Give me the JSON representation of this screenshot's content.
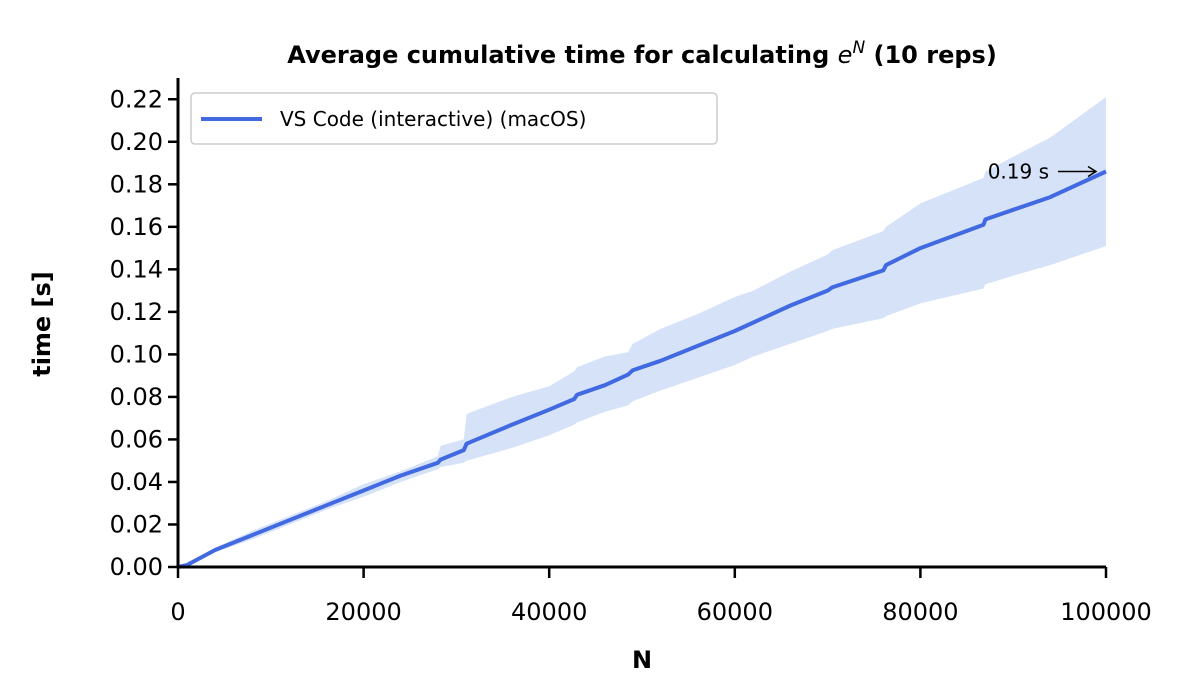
{
  "chart_data": {
    "type": "line",
    "title": "Average cumulative time for calculating e^N (10 reps)",
    "title_parts": {
      "prefix": "Average cumulative time for calculating ",
      "base": "e",
      "exponent": "N",
      "suffix": " (10 reps)"
    },
    "xlabel": "N",
    "ylabel": "time [s]",
    "xlim": [
      0,
      100000
    ],
    "ylim": [
      0,
      0.23
    ],
    "xticks": [
      0,
      20000,
      40000,
      60000,
      80000,
      100000
    ],
    "xtick_labels": [
      "0",
      "20000",
      "40000",
      "60000",
      "80000",
      "100000"
    ],
    "yticks": [
      0,
      0.02,
      0.04,
      0.06,
      0.08,
      0.1,
      0.12,
      0.14,
      0.16,
      0.18,
      0.2,
      0.22
    ],
    "ytick_labels": [
      "0.00",
      "0.02",
      "0.04",
      "0.06",
      "0.08",
      "0.10",
      "0.12",
      "0.14",
      "0.16",
      "0.18",
      "0.20",
      "0.22"
    ],
    "grid": false,
    "legend_position": "top-left",
    "series": [
      {
        "name": "VS Code (interactive) (macOS)",
        "color": "#4169e1",
        "band_color": "#d6e2f8",
        "x": [
          0,
          1000,
          4000,
          8000,
          12000,
          16000,
          20000,
          24000,
          28000,
          28300,
          30800,
          31100,
          36000,
          40000,
          42700,
          43000,
          46000,
          48500,
          49000,
          52000,
          56000,
          60000,
          62000,
          66000,
          70000,
          70500,
          76000,
          76300,
          80000,
          86800,
          87000,
          90000,
          94000,
          100000
        ],
        "values": [
          0,
          0.001,
          0.008,
          0.015,
          0.022,
          0.029,
          0.036,
          0.043,
          0.049,
          0.0505,
          0.055,
          0.058,
          0.067,
          0.074,
          0.079,
          0.081,
          0.0855,
          0.0905,
          0.0925,
          0.097,
          0.104,
          0.111,
          0.115,
          0.123,
          0.13,
          0.1315,
          0.1395,
          0.142,
          0.15,
          0.161,
          0.1635,
          0.168,
          0.174,
          0.186
        ],
        "upper": [
          0,
          0.0012,
          0.009,
          0.017,
          0.024,
          0.031,
          0.039,
          0.045,
          0.052,
          0.057,
          0.06,
          0.072,
          0.08,
          0.085,
          0.092,
          0.094,
          0.099,
          0.101,
          0.105,
          0.112,
          0.119,
          0.127,
          0.13,
          0.139,
          0.147,
          0.149,
          0.158,
          0.16,
          0.171,
          0.183,
          0.186,
          0.193,
          0.202,
          0.221
        ],
        "lower": [
          0,
          0.0008,
          0.007,
          0.013,
          0.02,
          0.027,
          0.033,
          0.04,
          0.046,
          0.047,
          0.049,
          0.05,
          0.056,
          0.062,
          0.067,
          0.068,
          0.073,
          0.076,
          0.078,
          0.083,
          0.089,
          0.095,
          0.099,
          0.105,
          0.111,
          0.112,
          0.117,
          0.118,
          0.124,
          0.131,
          0.133,
          0.137,
          0.142,
          0.151
        ]
      }
    ],
    "annotation": {
      "text": "0.19 s",
      "x": 100000,
      "y": 0.186
    }
  }
}
